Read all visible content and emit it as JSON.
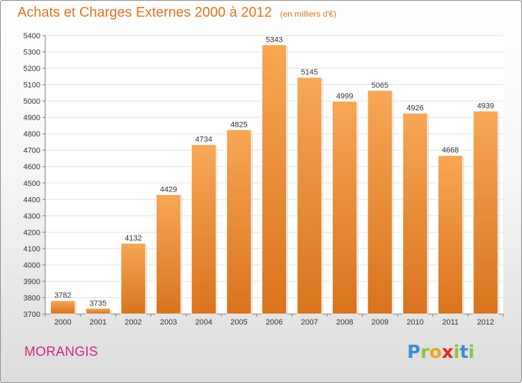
{
  "header": {
    "title": "Achats et Charges Externes 2000 à 2012",
    "unit": "(en milliers d'€)"
  },
  "footer": {
    "town": "MORANGIS",
    "logo_letters": [
      {
        "ch": "P",
        "color": "#3a8ed6"
      },
      {
        "ch": "r",
        "color": "#8cc63f"
      },
      {
        "ch": "o",
        "color": "#f7a21b"
      },
      {
        "ch": "x",
        "color": "#e2262a"
      },
      {
        "ch": "i",
        "color": "#8cc63f"
      },
      {
        "ch": "t",
        "color": "#3a8ed6"
      },
      {
        "ch": "i",
        "color": "#8cc63f"
      }
    ]
  },
  "chart_data": {
    "type": "bar",
    "title": "Achats et Charges Externes 2000 à 2012",
    "subtitle": "(en milliers d'€)",
    "categories": [
      "2000",
      "2001",
      "2002",
      "2003",
      "2004",
      "2005",
      "2006",
      "2007",
      "2008",
      "2009",
      "2010",
      "2011",
      "2012"
    ],
    "values": [
      3782,
      3735,
      4132,
      4429,
      4734,
      4825,
      5343,
      5145,
      4999,
      5065,
      4926,
      4668,
      4939
    ],
    "data_labels": [
      "3782",
      "3735",
      "4132",
      "4429",
      "4734",
      "4825",
      "5343",
      "5145",
      "4999",
      "5065",
      "4926",
      "4668",
      "4939"
    ],
    "ylim": [
      3700,
      5400
    ],
    "yticks": [
      "3700",
      "3800",
      "3900",
      "4000",
      "4100",
      "4200",
      "4300",
      "4400",
      "4500",
      "4600",
      "4700",
      "4800",
      "4900",
      "5000",
      "5100",
      "5200",
      "5300",
      "5400"
    ],
    "xlabel": "",
    "ylabel": "",
    "grid": true,
    "legend": "none",
    "colors": {
      "bar_top": "#f7a755",
      "bar_bottom": "#d9731d",
      "title": "#e0741c",
      "town": "#d2257e",
      "grid": "#e2e2e2"
    }
  }
}
